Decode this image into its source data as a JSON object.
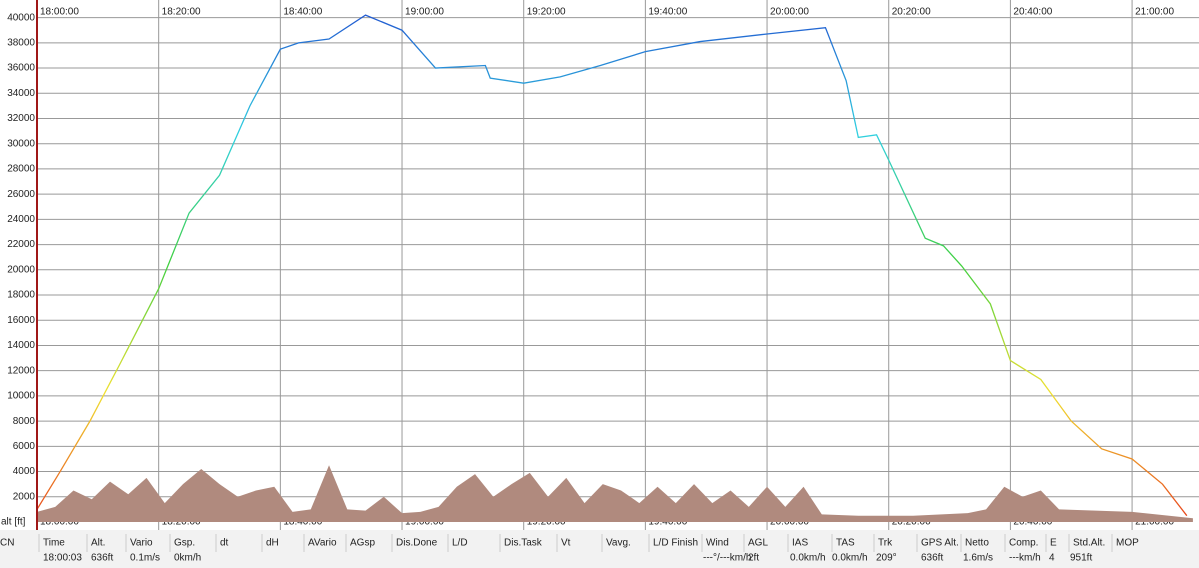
{
  "chart_data": {
    "type": "line",
    "y_label": "alt [ft]",
    "xlim": [
      "18:00:00",
      "21:11:00"
    ],
    "xticks": [
      "18:00:00",
      "18:20:00",
      "18:40:00",
      "19:00:00",
      "19:20:00",
      "19:40:00",
      "20:00:00",
      "20:20:00",
      "20:40:00",
      "21:00:00"
    ],
    "ylim": [
      0,
      41000
    ],
    "yticks": [
      2000,
      4000,
      6000,
      8000,
      10000,
      12000,
      14000,
      16000,
      18000,
      20000,
      22000,
      24000,
      26000,
      28000,
      30000,
      32000,
      34000,
      36000,
      38000,
      40000
    ],
    "grid": true,
    "series": [
      {
        "kind": "area",
        "color": "#b08a7e",
        "x": [
          "18:00:00",
          "18:03:00",
          "18:06:00",
          "18:09:00",
          "18:12:00",
          "18:15:00",
          "18:18:00",
          "18:21:00",
          "18:24:00",
          "18:27:00",
          "18:30:00",
          "18:33:00",
          "18:36:00",
          "18:39:00",
          "18:42:00",
          "18:45:00",
          "18:48:00",
          "18:51:00",
          "18:54:00",
          "18:57:00",
          "19:00:00",
          "19:03:00",
          "19:06:00",
          "19:09:00",
          "19:12:00",
          "19:15:00",
          "19:18:00",
          "19:21:00",
          "19:24:00",
          "19:27:00",
          "19:30:00",
          "19:33:00",
          "19:36:00",
          "19:39:00",
          "19:42:00",
          "19:45:00",
          "19:48:00",
          "19:51:00",
          "19:54:00",
          "19:57:00",
          "20:00:00",
          "20:03:00",
          "20:06:00",
          "20:09:00",
          "20:15:00",
          "20:24:00",
          "20:33:00",
          "20:36:00",
          "20:39:00",
          "20:42:00",
          "20:45:00",
          "20:48:00",
          "20:54:00",
          "21:00:00",
          "21:10:00"
        ],
        "values": [
          800,
          1200,
          2500,
          1800,
          3200,
          2200,
          3500,
          1500,
          3000,
          4200,
          3000,
          2000,
          2500,
          2800,
          800,
          1000,
          4500,
          1000,
          900,
          2000,
          700,
          800,
          1200,
          2800,
          3800,
          2000,
          3000,
          3900,
          2000,
          3500,
          1500,
          3000,
          2500,
          1500,
          2800,
          1500,
          3000,
          1500,
          2500,
          1200,
          2800,
          1200,
          2800,
          600,
          500,
          500,
          700,
          1000,
          2800,
          2000,
          2500,
          1000,
          900,
          800,
          300
        ]
      },
      {
        "kind": "line",
        "colors": [
          "#e8401c",
          "#f0e030",
          "#40d040",
          "#30d0e0",
          "#2050d0"
        ],
        "x": [
          "18:00:00",
          "18:03:48",
          "18:08:42",
          "18:13:36",
          "18:20:00",
          "18:25:00",
          "18:30:00",
          "18:35:00",
          "18:40:00",
          "18:43:00",
          "18:48:00",
          "18:54:00",
          "19:00:00",
          "19:05:30",
          "19:13:42",
          "19:14:30",
          "19:20:00",
          "19:26:00",
          "19:32:36",
          "19:40:00",
          "19:49:00",
          "20:00:00",
          "20:09:36",
          "20:13:00",
          "20:15:00",
          "20:18:00",
          "20:20:00",
          "20:26:00",
          "20:29:00",
          "20:32:00",
          "20:36:42",
          "20:40:00",
          "20:45:00",
          "20:50:00",
          "20:55:00",
          "21:00:00",
          "21:05:00",
          "21:09:00"
        ],
        "values": [
          1000,
          4000,
          8000,
          12500,
          18500,
          24500,
          27500,
          33000,
          37500,
          38000,
          38300,
          40200,
          39000,
          36000,
          36200,
          35200,
          34800,
          35300,
          36200,
          37300,
          38100,
          38700,
          39200,
          35000,
          30500,
          30700,
          28700,
          22500,
          21900,
          20300,
          17300,
          12800,
          11300,
          8000,
          5800,
          5000,
          3000,
          500
        ]
      }
    ]
  },
  "status_bar": {
    "cells": [
      {
        "header": "CN"
      },
      {
        "header": "Time",
        "value": "18:00:03"
      },
      {
        "header": "Alt.",
        "value": "636ft"
      },
      {
        "header": "Vario",
        "value": "0.1m/s"
      },
      {
        "header": "Gsp.",
        "value": "0km/h"
      },
      {
        "header": "dt"
      },
      {
        "header": "dH"
      },
      {
        "header": "AVario"
      },
      {
        "header": "AGsp"
      },
      {
        "header": "Dis.Done"
      },
      {
        "header": "L/D"
      },
      {
        "header": "Dis.Task"
      },
      {
        "header": "Vt"
      },
      {
        "header": "Vavg."
      },
      {
        "header": "L/D Finish"
      },
      {
        "header": "Wind",
        "value": "---°/---km/h"
      },
      {
        "header": "AGL",
        "value": "2ft"
      },
      {
        "header": "IAS",
        "value": "0.0km/h"
      },
      {
        "header": "TAS",
        "value": "0.0km/h"
      },
      {
        "header": "Trk",
        "value": "209°"
      },
      {
        "header": "GPS Alt.",
        "value": "636ft"
      },
      {
        "header": "Netto",
        "value": "1.6m/s"
      },
      {
        "header": "Comp.",
        "value": "---km/h"
      },
      {
        "header": "E",
        "value": "4"
      },
      {
        "header": "Std.Alt.",
        "value": "951ft"
      },
      {
        "header": "MOP"
      }
    ]
  }
}
